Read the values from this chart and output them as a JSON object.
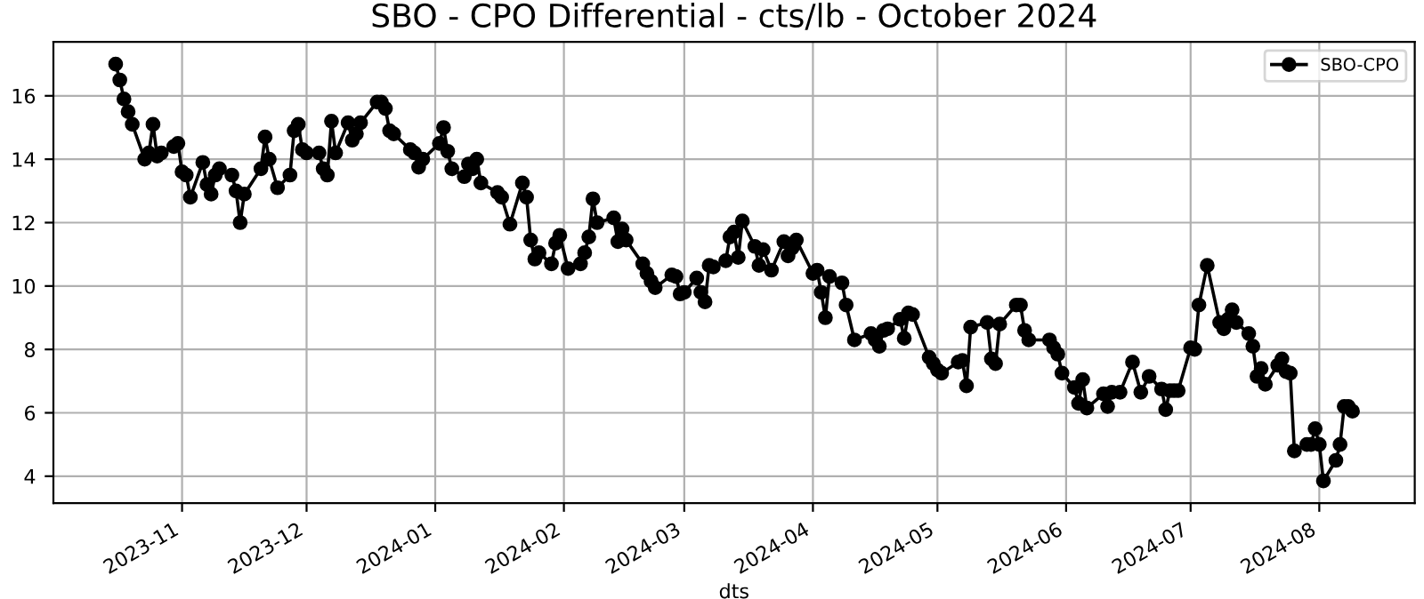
{
  "chart_data": {
    "type": "line",
    "title": "SBO - CPO Differential - cts/lb - October 2024",
    "xlabel": "dts",
    "x": [
      "2023-10-16",
      "2023-10-17",
      "2023-10-18",
      "2023-10-19",
      "2023-10-20",
      "2023-10-23",
      "2023-10-24",
      "2023-10-25",
      "2023-10-26",
      "2023-10-27",
      "2023-10-30",
      "2023-10-31",
      "2023-11-01",
      "2023-11-02",
      "2023-11-03",
      "2023-11-06",
      "2023-11-07",
      "2023-11-08",
      "2023-11-09",
      "2023-11-10",
      "2023-11-13",
      "2023-11-14",
      "2023-11-15",
      "2023-11-16",
      "2023-11-20",
      "2023-11-21",
      "2023-11-22",
      "2023-11-24",
      "2023-11-27",
      "2023-11-28",
      "2023-11-29",
      "2023-11-30",
      "2023-12-01",
      "2023-12-04",
      "2023-12-05",
      "2023-12-06",
      "2023-12-07",
      "2023-12-08",
      "2023-12-11",
      "2023-12-12",
      "2023-12-13",
      "2023-12-14",
      "2023-12-18",
      "2023-12-19",
      "2023-12-20",
      "2023-12-21",
      "2023-12-22",
      "2023-12-26",
      "2023-12-27",
      "2023-12-28",
      "2023-12-29",
      "2024-01-02",
      "2024-01-03",
      "2024-01-04",
      "2024-01-05",
      "2024-01-08",
      "2024-01-09",
      "2024-01-10",
      "2024-01-11",
      "2024-01-12",
      "2024-01-16",
      "2024-01-17",
      "2024-01-19",
      "2024-01-22",
      "2024-01-23",
      "2024-01-24",
      "2024-01-25",
      "2024-01-26",
      "2024-01-29",
      "2024-01-30",
      "2024-01-31",
      "2024-02-02",
      "2024-02-05",
      "2024-02-06",
      "2024-02-07",
      "2024-02-08",
      "2024-02-09",
      "2024-02-13",
      "2024-02-14",
      "2024-02-15",
      "2024-02-16",
      "2024-02-20",
      "2024-02-21",
      "2024-02-22",
      "2024-02-23",
      "2024-02-27",
      "2024-02-28",
      "2024-02-29",
      "2024-03-01",
      "2024-03-04",
      "2024-03-05",
      "2024-03-06",
      "2024-03-07",
      "2024-03-08",
      "2024-03-11",
      "2024-03-12",
      "2024-03-13",
      "2024-03-14",
      "2024-03-15",
      "2024-03-18",
      "2024-03-19",
      "2024-03-20",
      "2024-03-22",
      "2024-03-25",
      "2024-03-26",
      "2024-03-27",
      "2024-03-28",
      "2024-04-01",
      "2024-04-02",
      "2024-04-03",
      "2024-04-04",
      "2024-04-05",
      "2024-04-08",
      "2024-04-09",
      "2024-04-11",
      "2024-04-15",
      "2024-04-16",
      "2024-04-17",
      "2024-04-18",
      "2024-04-19",
      "2024-04-22",
      "2024-04-23",
      "2024-04-24",
      "2024-04-25",
      "2024-04-29",
      "2024-04-30",
      "2024-05-01",
      "2024-05-02",
      "2024-05-06",
      "2024-05-07",
      "2024-05-08",
      "2024-05-09",
      "2024-05-13",
      "2024-05-14",
      "2024-05-15",
      "2024-05-16",
      "2024-05-20",
      "2024-05-21",
      "2024-05-22",
      "2024-05-23",
      "2024-05-28",
      "2024-05-29",
      "2024-05-30",
      "2024-05-31",
      "2024-06-03",
      "2024-06-04",
      "2024-06-05",
      "2024-06-06",
      "2024-06-10",
      "2024-06-11",
      "2024-06-12",
      "2024-06-14",
      "2024-06-17",
      "2024-06-19",
      "2024-06-21",
      "2024-06-24",
      "2024-06-25",
      "2024-06-26",
      "2024-06-27",
      "2024-06-28",
      "2024-07-01",
      "2024-07-02",
      "2024-07-03",
      "2024-07-05",
      "2024-07-08",
      "2024-07-09",
      "2024-07-10",
      "2024-07-11",
      "2024-07-12",
      "2024-07-15",
      "2024-07-16",
      "2024-07-17",
      "2024-07-18",
      "2024-07-19",
      "2024-07-22",
      "2024-07-23",
      "2024-07-24",
      "2024-07-25",
      "2024-07-26",
      "2024-07-29",
      "2024-07-30",
      "2024-07-31",
      "2024-08-01",
      "2024-08-02",
      "2024-08-05",
      "2024-08-06",
      "2024-08-07",
      "2024-08-08",
      "2024-08-09"
    ],
    "series": [
      {
        "name": "SBO-CPO",
        "color": "#000000",
        "values": [
          17.0,
          16.5,
          15.9,
          15.5,
          15.1,
          14.0,
          14.2,
          15.1,
          14.1,
          14.2,
          14.4,
          14.5,
          13.6,
          13.5,
          12.8,
          13.9,
          13.2,
          12.9,
          13.5,
          13.7,
          13.5,
          13.0,
          12.0,
          12.9,
          13.7,
          14.7,
          14.0,
          13.1,
          13.5,
          14.9,
          15.1,
          14.3,
          14.2,
          14.2,
          13.7,
          13.5,
          15.2,
          14.2,
          15.15,
          14.6,
          14.8,
          15.15,
          15.8,
          15.8,
          15.6,
          14.9,
          14.8,
          14.3,
          14.2,
          13.75,
          14.0,
          14.5,
          15.0,
          14.25,
          13.7,
          13.45,
          13.85,
          13.7,
          14.0,
          13.25,
          12.95,
          12.8,
          11.95,
          13.25,
          12.8,
          11.45,
          10.85,
          11.05,
          10.7,
          11.35,
          11.6,
          10.55,
          10.7,
          11.05,
          11.55,
          12.75,
          12.0,
          12.15,
          11.4,
          11.8,
          11.45,
          10.7,
          10.4,
          10.15,
          9.95,
          10.35,
          10.3,
          9.75,
          9.8,
          10.25,
          9.8,
          9.5,
          10.65,
          10.6,
          10.8,
          11.55,
          11.7,
          10.9,
          12.05,
          11.25,
          10.65,
          11.15,
          10.5,
          11.4,
          10.95,
          11.2,
          11.45,
          10.4,
          10.5,
          9.8,
          9.0,
          10.3,
          10.1,
          9.4,
          8.3,
          8.5,
          8.3,
          8.1,
          8.6,
          8.65,
          8.95,
          8.35,
          9.15,
          9.1,
          7.75,
          7.55,
          7.35,
          7.25,
          7.6,
          7.65,
          6.85,
          8.7,
          8.85,
          7.7,
          7.55,
          8.8,
          9.4,
          9.4,
          8.6,
          8.3,
          8.3,
          8.05,
          7.85,
          7.25,
          6.8,
          6.3,
          7.05,
          6.15,
          6.6,
          6.2,
          6.65,
          6.65,
          7.6,
          6.65,
          7.15,
          6.75,
          6.1,
          6.7,
          6.7,
          6.7,
          8.05,
          8.0,
          9.4,
          10.65,
          8.85,
          8.65,
          8.95,
          9.25,
          8.85,
          8.5,
          8.1,
          7.15,
          7.4,
          6.9,
          7.5,
          7.7,
          7.3,
          7.25,
          4.8,
          5.0,
          5.0,
          5.5,
          5.0,
          3.85,
          4.5,
          5.0,
          6.2,
          6.2,
          6.05
        ]
      }
    ],
    "xlim": [
      "2023-10-01",
      "2024-08-24"
    ],
    "xticks": [
      {
        "value": "2023-11-01",
        "label": "2023-11"
      },
      {
        "value": "2023-12-01",
        "label": "2023-12"
      },
      {
        "value": "2024-01-01",
        "label": "2024-01"
      },
      {
        "value": "2024-02-01",
        "label": "2024-02"
      },
      {
        "value": "2024-03-01",
        "label": "2024-03"
      },
      {
        "value": "2024-04-01",
        "label": "2024-04"
      },
      {
        "value": "2024-05-01",
        "label": "2024-05"
      },
      {
        "value": "2024-06-01",
        "label": "2024-06"
      },
      {
        "value": "2024-07-01",
        "label": "2024-07"
      },
      {
        "value": "2024-08-01",
        "label": "2024-08"
      }
    ],
    "ylim": [
      3.15,
      17.7
    ],
    "yticks": [
      4,
      6,
      8,
      10,
      12,
      14,
      16
    ],
    "grid": true,
    "legend": "top right",
    "marker": "circle",
    "line_style": "solid"
  }
}
